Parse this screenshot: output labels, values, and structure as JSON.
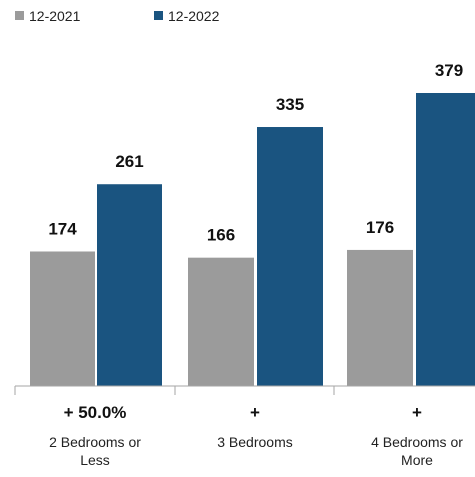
{
  "chart_data": {
    "type": "bar",
    "categories": [
      [
        "2 Bedrooms or",
        "Less"
      ],
      [
        "3 Bedrooms"
      ],
      [
        "4 Bedrooms or",
        "More"
      ]
    ],
    "changes": [
      "+ 50.0%",
      "+",
      "+"
    ],
    "series": [
      {
        "name": "12-2021",
        "color": "#9b9b9b",
        "values": [
          174,
          166,
          176
        ]
      },
      {
        "name": "12-2022",
        "color": "#1a5480",
        "values": [
          261,
          335,
          379
        ]
      }
    ],
    "ylim": [
      0,
      379
    ],
    "legend": "top-left",
    "grid": false,
    "axis_color": "#a6a6a6"
  }
}
